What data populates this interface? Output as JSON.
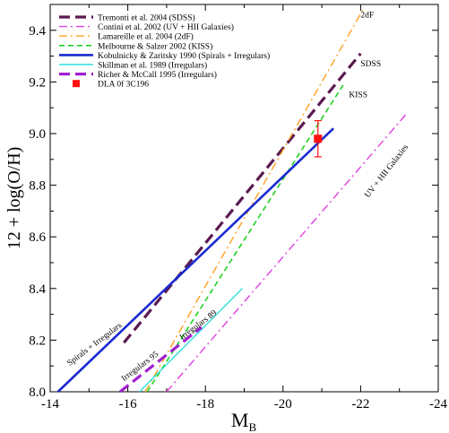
{
  "chart_data": {
    "type": "line",
    "xlabel": "M",
    "xlabel_sub": "B",
    "ylabel": "12 + log(O/H)",
    "xlim": [
      -14,
      -24
    ],
    "ylim": [
      8.0,
      9.5
    ],
    "xticks": [
      "-14",
      "-16",
      "-18",
      "-20",
      "-22",
      "-24"
    ],
    "yticks": [
      "8.0",
      "8.2",
      "8.4",
      "8.6",
      "8.8",
      "9.0",
      "9.2",
      "9.4"
    ],
    "grid": false,
    "legend_position": "top-left",
    "series": [
      {
        "name": "Tremonti et al. 2004 (SDSS)",
        "color": "#5a1a50",
        "dash": "12,6",
        "width": 3.2,
        "x": [
          -15.9,
          -22.0
        ],
        "y": [
          8.19,
          9.31
        ]
      },
      {
        "name": "Contini et al. 2002 (UV + HII Galaxies)",
        "color": "#e040e0",
        "dash": "9,4,2,4",
        "width": 1.4,
        "x": [
          -17.0,
          -23.2
        ],
        "y": [
          8.0,
          9.08
        ]
      },
      {
        "name": "Lamareille et al. 2004 (2dF)",
        "color": "#ffa020",
        "dash": "9,4,2,4",
        "width": 1.4,
        "x": [
          -16.45,
          -22.1
        ],
        "y": [
          8.0,
          9.49
        ]
      },
      {
        "name": "Melbourne & Salzer 2002 (KISS)",
        "color": "#20d020",
        "dash": "6,4",
        "width": 1.6,
        "x": [
          -16.5,
          -21.6
        ],
        "y": [
          8.0,
          9.2
        ]
      },
      {
        "name": "Kobulnicky & Zaritsky 1990 (Spirals + Irregulars)",
        "color": "#1a2ad0",
        "dash": "",
        "width": 2.6,
        "x": [
          -14.2,
          -21.3
        ],
        "y": [
          8.0,
          9.02
        ]
      },
      {
        "name": "Skillman et al. 1989 (Irregulars)",
        "color": "#30e0e0",
        "dash": "",
        "width": 1.4,
        "x": [
          -16.3,
          -18.95
        ],
        "y": [
          8.0,
          8.4
        ]
      },
      {
        "name": "Richer & McCall 1995 (Irregulars)",
        "color": "#a020d0",
        "dash": "12,6",
        "width": 3.2,
        "x": [
          -15.8,
          -17.9
        ],
        "y": [
          8.0,
          8.25
        ]
      }
    ],
    "points": [
      {
        "name": "DLA 0f 3C196",
        "color": "#ff1010",
        "x": -20.9,
        "y": 8.98,
        "yerr_low": 8.91,
        "yerr_high": 9.05
      }
    ],
    "annotations": [
      {
        "text": "2dF",
        "x": -22.0,
        "y": 9.45,
        "rotate": 0
      },
      {
        "text": "SDSS",
        "x": -22.0,
        "y": 9.26,
        "rotate": 0
      },
      {
        "text": "KISS",
        "x": -21.7,
        "y": 9.14,
        "rotate": 0
      },
      {
        "text": "UV + HII Galaxies",
        "x": -22.2,
        "y": 8.75,
        "rotate": -52
      },
      {
        "text": "Spirals + Irregulars",
        "x": -14.5,
        "y": 8.1,
        "rotate": -37
      },
      {
        "text": "Irregulars 95",
        "x": -15.9,
        "y": 8.04,
        "rotate": -37
      },
      {
        "text": "Irregulars 89",
        "x": -17.4,
        "y": 8.2,
        "rotate": -37
      }
    ]
  }
}
